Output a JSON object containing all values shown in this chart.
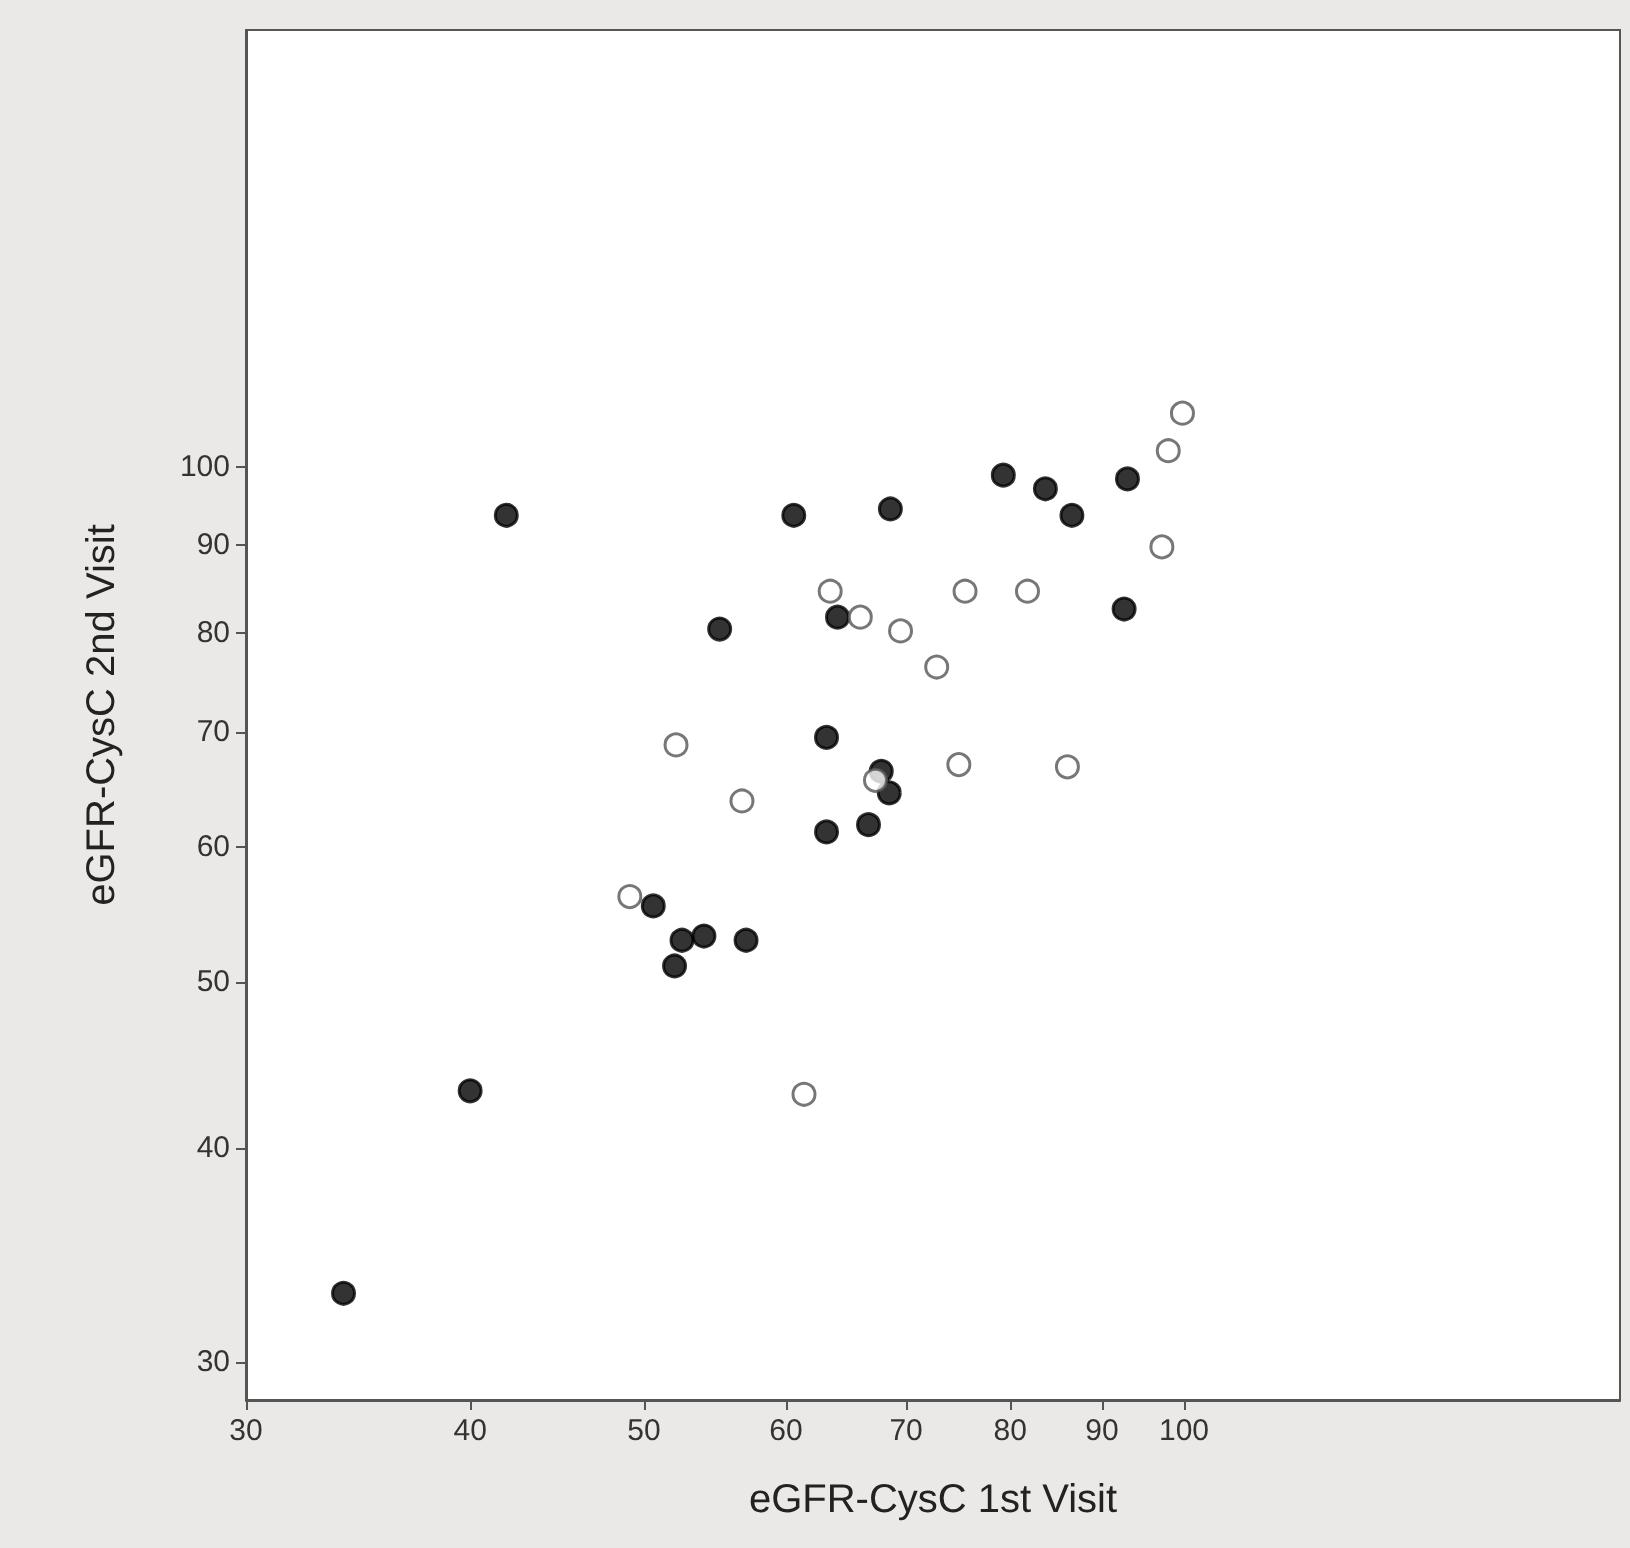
{
  "chart_data": {
    "type": "scatter",
    "xlabel": "eGFR-CysC 1st Visit",
    "ylabel": "eGFR-CysC 2nd Visit",
    "log": "xy",
    "grid": false,
    "marker": "circle",
    "xlim": [
      30,
      175
    ],
    "ylim": [
      28.5,
      180
    ],
    "xticks": [
      30,
      40,
      50,
      60,
      70,
      80,
      90,
      100
    ],
    "yticks": [
      30,
      40,
      50,
      60,
      70,
      80,
      90,
      100
    ],
    "series": [
      {
        "color": "#000000",
        "x": [
          34.0,
          40.0,
          41.9,
          50.6,
          52.5,
          54.0,
          57.0,
          52.0,
          63.2,
          63.2,
          67.8,
          68.5,
          66.7,
          60.6,
          68.6,
          79.3,
          83.7,
          86.6,
          93.0,
          55.1,
          64.1,
          92.6
        ],
        "values": [
          32.9,
          43.2,
          93.7,
          55.4,
          52.9,
          53.2,
          52.9,
          51.1,
          69.5,
          61.2,
          66.4,
          64.5,
          61.8,
          93.7,
          94.5,
          98.9,
          97.1,
          93.7,
          98.4,
          80.4,
          81.7,
          82.6
        ]
      },
      {
        "color": "#ffffff",
        "x": [
          49.1,
          52.1,
          56.7,
          61.4,
          67.3,
          99.8,
          98.0,
          97.2,
          63.5,
          66.0,
          69.5,
          75.5,
          81.8,
          72.8,
          74.9,
          86.1
        ],
        "values": [
          56.1,
          68.8,
          63.8,
          43.0,
          65.6,
          107.5,
          102.2,
          89.8,
          84.6,
          81.7,
          80.2,
          84.6,
          84.6,
          76.4,
          67.0,
          66.8
        ]
      }
    ]
  }
}
